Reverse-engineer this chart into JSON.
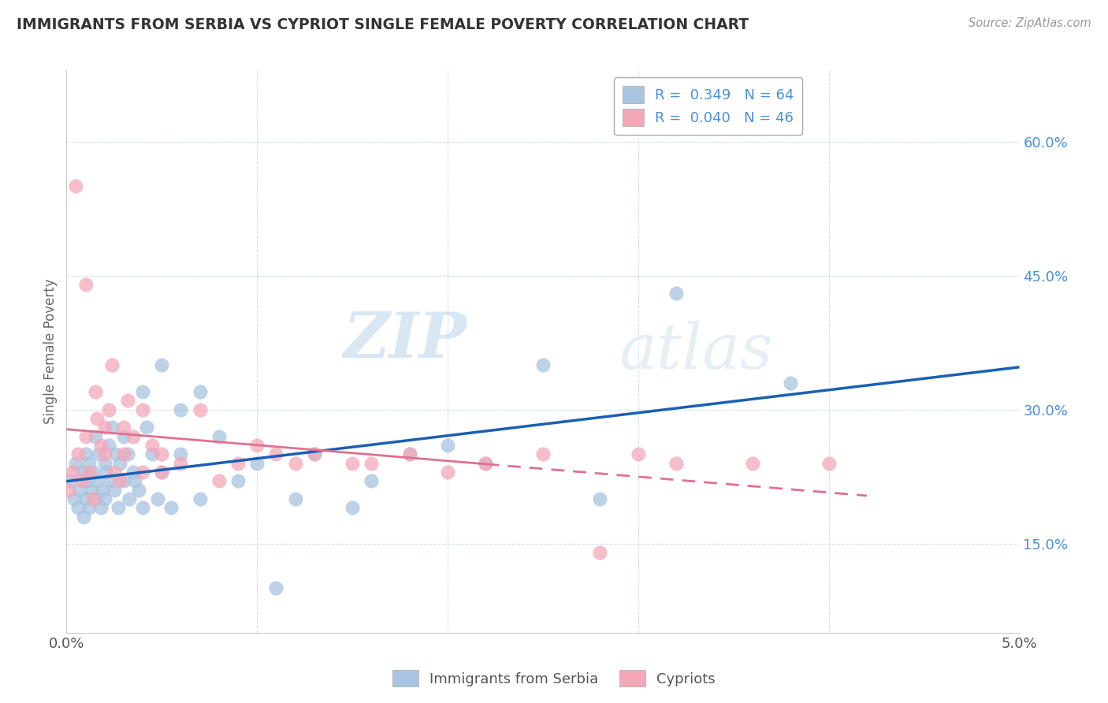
{
  "title": "IMMIGRANTS FROM SERBIA VS CYPRIOT SINGLE FEMALE POVERTY CORRELATION CHART",
  "source": "Source: ZipAtlas.com",
  "ylabel": "Single Female Poverty",
  "serbia_R": 0.349,
  "serbia_N": 64,
  "cyprus_R": 0.04,
  "cyprus_N": 46,
  "serbia_color": "#a8c4e0",
  "cyprus_color": "#f4a7b9",
  "serbia_line_color": "#1a5fb4",
  "cyprus_line_color": "#e07090",
  "watermark_zip": "ZIP",
  "watermark_atlas": "atlas",
  "serbia_label": "Immigrants from Serbia",
  "cyprus_label": "Cypriots",
  "serbia_x": [
    0.0002,
    0.0004,
    0.0005,
    0.0006,
    0.0007,
    0.0008,
    0.0009,
    0.001,
    0.001,
    0.0011,
    0.0012,
    0.0012,
    0.0013,
    0.0014,
    0.0015,
    0.0015,
    0.0016,
    0.0017,
    0.0018,
    0.0019,
    0.002,
    0.002,
    0.0021,
    0.0022,
    0.0023,
    0.0024,
    0.0025,
    0.0026,
    0.0027,
    0.0028,
    0.003,
    0.003,
    0.0032,
    0.0033,
    0.0035,
    0.0036,
    0.0038,
    0.004,
    0.004,
    0.0042,
    0.0045,
    0.0048,
    0.005,
    0.005,
    0.0055,
    0.006,
    0.006,
    0.007,
    0.007,
    0.008,
    0.009,
    0.01,
    0.011,
    0.012,
    0.013,
    0.015,
    0.016,
    0.018,
    0.02,
    0.022,
    0.025,
    0.028,
    0.032,
    0.038
  ],
  "serbia_y": [
    0.22,
    0.2,
    0.24,
    0.19,
    0.21,
    0.23,
    0.18,
    0.2,
    0.25,
    0.22,
    0.19,
    0.24,
    0.21,
    0.23,
    0.2,
    0.27,
    0.22,
    0.25,
    0.19,
    0.21,
    0.24,
    0.2,
    0.23,
    0.26,
    0.22,
    0.28,
    0.21,
    0.25,
    0.19,
    0.24,
    0.22,
    0.27,
    0.25,
    0.2,
    0.23,
    0.22,
    0.21,
    0.32,
    0.19,
    0.28,
    0.25,
    0.2,
    0.23,
    0.35,
    0.19,
    0.3,
    0.25,
    0.32,
    0.2,
    0.27,
    0.22,
    0.24,
    0.1,
    0.2,
    0.25,
    0.19,
    0.22,
    0.25,
    0.26,
    0.24,
    0.35,
    0.2,
    0.43,
    0.33
  ],
  "cyprus_x": [
    0.0001,
    0.0003,
    0.0005,
    0.0006,
    0.0008,
    0.001,
    0.001,
    0.0012,
    0.0014,
    0.0015,
    0.0016,
    0.0018,
    0.002,
    0.002,
    0.0022,
    0.0024,
    0.0025,
    0.0028,
    0.003,
    0.003,
    0.0032,
    0.0035,
    0.004,
    0.004,
    0.0045,
    0.005,
    0.005,
    0.006,
    0.007,
    0.008,
    0.009,
    0.01,
    0.011,
    0.012,
    0.013,
    0.015,
    0.016,
    0.018,
    0.02,
    0.022,
    0.025,
    0.028,
    0.03,
    0.032,
    0.036,
    0.04
  ],
  "cyprus_y": [
    0.21,
    0.23,
    0.55,
    0.25,
    0.22,
    0.44,
    0.27,
    0.23,
    0.2,
    0.32,
    0.29,
    0.26,
    0.25,
    0.28,
    0.3,
    0.35,
    0.23,
    0.22,
    0.28,
    0.25,
    0.31,
    0.27,
    0.23,
    0.3,
    0.26,
    0.25,
    0.23,
    0.24,
    0.3,
    0.22,
    0.24,
    0.26,
    0.25,
    0.24,
    0.25,
    0.24,
    0.24,
    0.25,
    0.23,
    0.24,
    0.25,
    0.14,
    0.25,
    0.24,
    0.24,
    0.24
  ],
  "xlim": [
    0.0,
    0.05
  ],
  "ylim": [
    0.05,
    0.68
  ],
  "yticks": [
    0.15,
    0.3,
    0.45,
    0.6
  ],
  "ytick_labels": [
    "15.0%",
    "30.0%",
    "45.0%",
    "60.0%"
  ],
  "xtick_labels": [
    "0.0%",
    "",
    "",
    "",
    "",
    "5.0%"
  ]
}
